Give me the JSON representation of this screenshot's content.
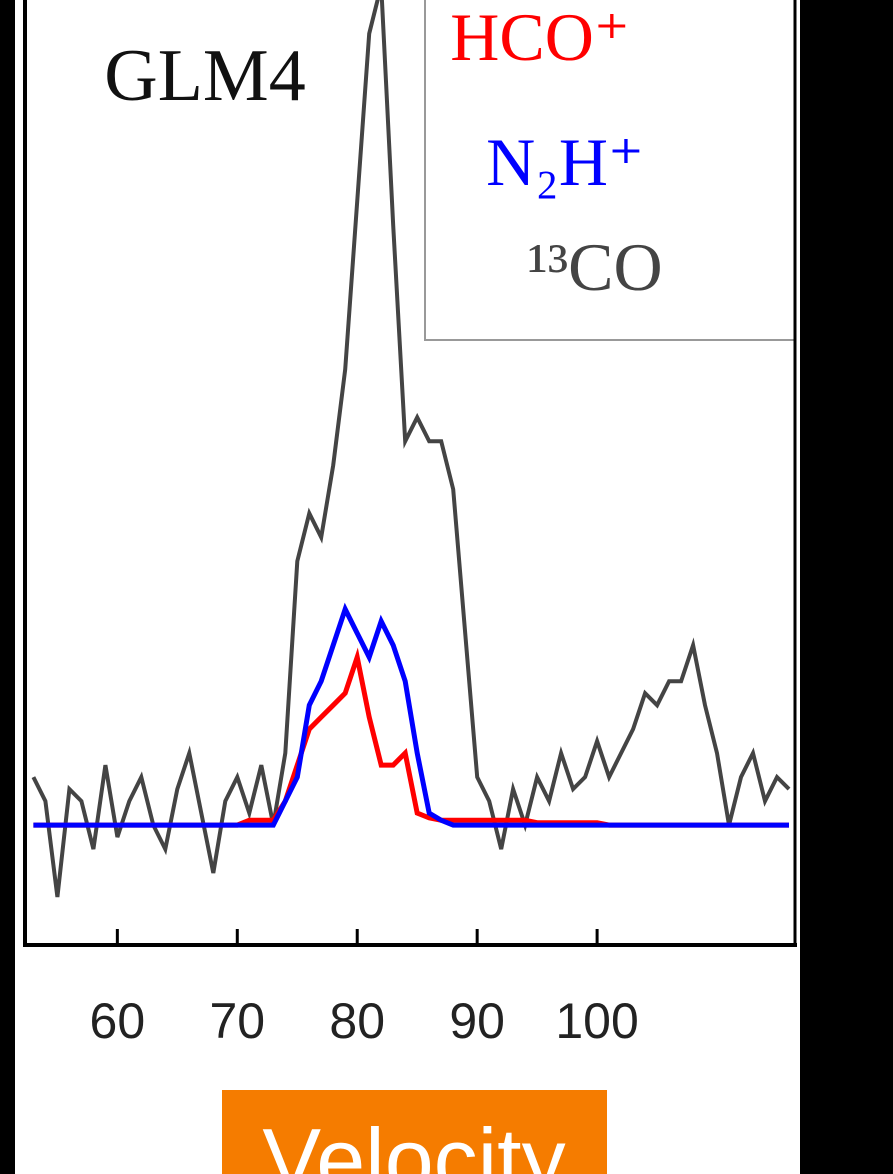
{
  "chart_data": {
    "type": "line",
    "annotation": "GLM4",
    "x_label": "Velocity",
    "x": [
      53,
      54,
      55,
      56,
      57,
      58,
      59,
      60,
      61,
      62,
      63,
      64,
      65,
      66,
      67,
      68,
      69,
      70,
      71,
      72,
      73,
      74,
      75,
      76,
      77,
      78,
      79,
      80,
      81,
      82,
      83,
      84,
      85,
      86,
      87,
      88,
      89,
      90,
      91,
      92,
      93,
      94,
      95,
      96,
      97,
      98,
      99,
      100,
      101,
      102,
      103,
      104,
      105,
      106,
      107,
      108,
      109,
      110,
      111,
      112,
      113,
      114,
      115,
      116
    ],
    "series": [
      {
        "name": "HCO⁺",
        "color": "#ff0000",
        "values": [
          0,
          0,
          0,
          0,
          0,
          0,
          0,
          0,
          0,
          0,
          0,
          0,
          0,
          0,
          0,
          0,
          0,
          0,
          0.02,
          0.02,
          0.02,
          0.1,
          0.25,
          0.4,
          0.45,
          0.5,
          0.55,
          0.7,
          0.45,
          0.25,
          0.25,
          0.3,
          0.05,
          0.03,
          0.02,
          0.02,
          0.02,
          0.02,
          0.02,
          0.02,
          0.02,
          0.02,
          0.01,
          0.01,
          0.01,
          0.01,
          0.01,
          0.01,
          0,
          0,
          0,
          0,
          0,
          0,
          0,
          0,
          0,
          0,
          0,
          0,
          0,
          0,
          0,
          0
        ]
      },
      {
        "name": "N₂H⁺",
        "color": "#0000ff",
        "values": [
          0,
          0,
          0,
          0,
          0,
          0,
          0,
          0,
          0,
          0,
          0,
          0,
          0,
          0,
          0,
          0,
          0,
          0,
          0,
          0,
          0,
          0.1,
          0.2,
          0.5,
          0.6,
          0.75,
          0.9,
          0.8,
          0.7,
          0.85,
          0.75,
          0.6,
          0.3,
          0.05,
          0.02,
          0,
          0,
          0,
          0,
          0,
          0,
          0,
          0,
          0,
          0,
          0,
          0,
          0,
          0,
          0,
          0,
          0,
          0,
          0,
          0,
          0,
          0,
          0,
          0,
          0,
          0,
          0,
          0,
          0
        ]
      },
      {
        "name": "¹³CO",
        "color": "#444444",
        "values": [
          0.2,
          0.1,
          -0.3,
          0.15,
          0.1,
          -0.1,
          0.25,
          -0.05,
          0.1,
          0.2,
          0,
          -0.1,
          0.15,
          0.3,
          0.05,
          -0.2,
          0.1,
          0.2,
          0.05,
          0.25,
          0,
          0.3,
          1.1,
          1.3,
          1.2,
          1.5,
          1.9,
          2.6,
          3.3,
          3.5,
          2.5,
          1.6,
          1.7,
          1.6,
          1.6,
          1.4,
          0.8,
          0.2,
          0.1,
          -0.1,
          0.15,
          0,
          0.2,
          0.1,
          0.3,
          0.15,
          0.2,
          0.35,
          0.2,
          0.3,
          0.4,
          0.55,
          0.5,
          0.6,
          0.6,
          0.75,
          0.5,
          0.3,
          0,
          0.2,
          0.3,
          0.1,
          0.2,
          0.15
        ]
      }
    ],
    "xlim": [
      52.3,
      116.5
    ],
    "ylim": [
      -0.5,
      3.44
    ],
    "xticks": [
      60,
      70,
      80,
      90,
      100
    ]
  }
}
